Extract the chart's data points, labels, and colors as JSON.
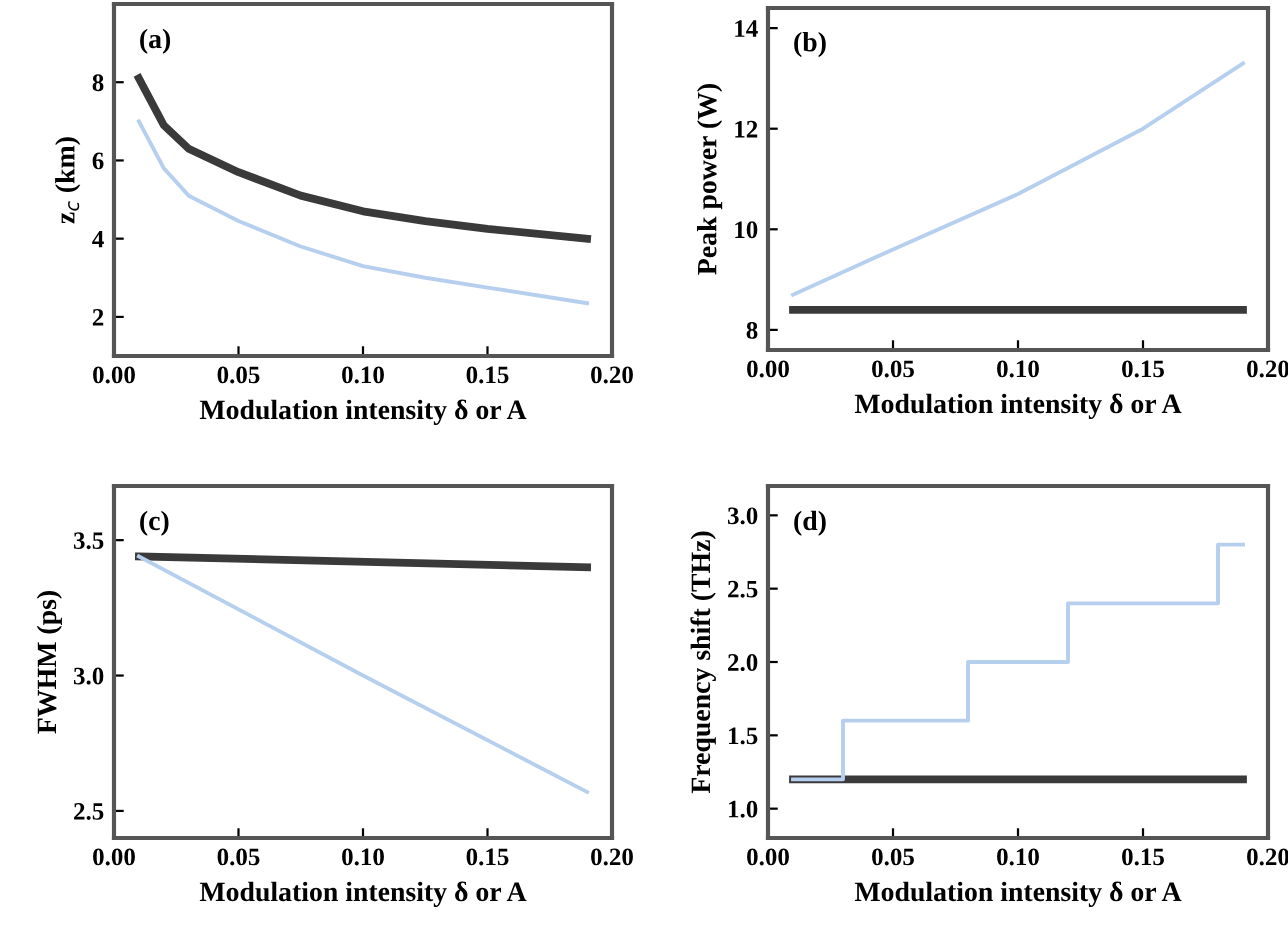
{
  "chart_data": [
    {
      "type": "line",
      "xlabel": "Modulation intensity δ or A",
      "ylabel": "z$_{c}$ (km)",
      "annotations": [
        "(a)"
      ],
      "xlim": [
        0,
        0.2
      ],
      "ylim": [
        1,
        10
      ],
      "xticks": [
        {
          "value": 0,
          "label": "0.00"
        },
        {
          "value": 0.05,
          "label": "0.05"
        },
        {
          "value": 0.1,
          "label": "0.10"
        },
        {
          "value": 0.15,
          "label": "0.15"
        },
        {
          "value": 0.2,
          "label": "0.20"
        }
      ],
      "yticks": [
        2,
        4,
        6,
        8
      ],
      "grid": false,
      "marker": "none",
      "line_style": "solid",
      "series": [
        {
          "color": "#3a3a3a",
          "x": [
            0.01,
            0.02,
            0.03,
            0.05,
            0.075,
            0.1,
            0.125,
            0.15,
            0.19
          ],
          "values": [
            8.1,
            6.9,
            6.3,
            5.7,
            5.1,
            4.7,
            4.45,
            4.25,
            4.0
          ]
        },
        {
          "color": "#b7cfee",
          "x": [
            0.01,
            0.02,
            0.03,
            0.05,
            0.075,
            0.1,
            0.125,
            0.15,
            0.19
          ],
          "values": [
            7.0,
            5.8,
            5.1,
            4.45,
            3.8,
            3.3,
            3.0,
            2.75,
            2.35
          ]
        }
      ]
    },
    {
      "type": "line",
      "xlabel": "Modulation intensity δ or A",
      "ylabel": "Peak power (W)",
      "annotations": [
        "(b)"
      ],
      "xlim": [
        0,
        0.2
      ],
      "ylim": [
        7.6,
        14.4
      ],
      "xticks": [
        {
          "value": 0,
          "label": "0.00"
        },
        {
          "value": 0.05,
          "label": "0.05"
        },
        {
          "value": 0.1,
          "label": "0.10"
        },
        {
          "value": 0.15,
          "label": "0.15"
        },
        {
          "value": 0.2,
          "label": "0.20"
        }
      ],
      "yticks": [
        8,
        10,
        12,
        14
      ],
      "grid": false,
      "marker": "none",
      "line_style": "solid",
      "series": [
        {
          "color": "#3a3a3a",
          "x": [
            0.01,
            0.19
          ],
          "values": [
            8.4,
            8.4
          ]
        },
        {
          "color": "#b7cfee",
          "x": [
            0.01,
            0.05,
            0.1,
            0.15,
            0.19
          ],
          "values": [
            8.7,
            9.6,
            10.7,
            12.0,
            13.3
          ]
        }
      ]
    },
    {
      "type": "line",
      "xlabel": "Modulation intensity δ or A",
      "ylabel": "FWHM (ps)",
      "annotations": [
        "(c)"
      ],
      "xlim": [
        0,
        0.2
      ],
      "ylim": [
        2.4,
        3.7
      ],
      "xticks": [
        {
          "value": 0,
          "label": "0.00"
        },
        {
          "value": 0.05,
          "label": "0.05"
        },
        {
          "value": 0.1,
          "label": "0.10"
        },
        {
          "value": 0.15,
          "label": "0.15"
        },
        {
          "value": 0.2,
          "label": "0.20"
        }
      ],
      "yticks": [
        2.5,
        {
          "value": 3,
          "label": "3.0"
        },
        3.5
      ],
      "grid": false,
      "marker": "none",
      "line_style": "solid",
      "series": [
        {
          "color": "#3a3a3a",
          "x": [
            0.01,
            0.19
          ],
          "values": [
            3.44,
            3.4
          ]
        },
        {
          "color": "#b7cfee",
          "x": [
            0.01,
            0.1,
            0.19
          ],
          "values": [
            3.44,
            3.0,
            2.57
          ]
        }
      ]
    },
    {
      "type": "line",
      "xlabel": "Modulation intensity δ or A",
      "ylabel": "Frequency shift (THz)",
      "annotations": [
        "(d)"
      ],
      "xlim": [
        0,
        0.2
      ],
      "ylim": [
        0.8,
        3.2
      ],
      "xticks": [
        {
          "value": 0,
          "label": "0.00"
        },
        {
          "value": 0.05,
          "label": "0.05"
        },
        {
          "value": 0.1,
          "label": "0.10"
        },
        {
          "value": 0.15,
          "label": "0.15"
        },
        {
          "value": 0.2,
          "label": "0.20"
        }
      ],
      "yticks": [
        {
          "value": 1,
          "label": "1.0"
        },
        1.5,
        {
          "value": 2,
          "label": "2.0"
        },
        2.5,
        {
          "value": 3,
          "label": "3.0"
        }
      ],
      "grid": false,
      "marker": "none",
      "line_style": "solid",
      "series": [
        {
          "color": "#3a3a3a",
          "x": [
            0.01,
            0.19
          ],
          "values": [
            1.2,
            1.2
          ]
        },
        {
          "type": "step",
          "color": "#b7cfee",
          "x": [
            0.01,
            0.03,
            0.08,
            0.12,
            0.18,
            0.19
          ],
          "values": [
            1.2,
            1.6,
            2.0,
            2.4,
            2.8,
            2.8
          ]
        }
      ]
    }
  ]
}
